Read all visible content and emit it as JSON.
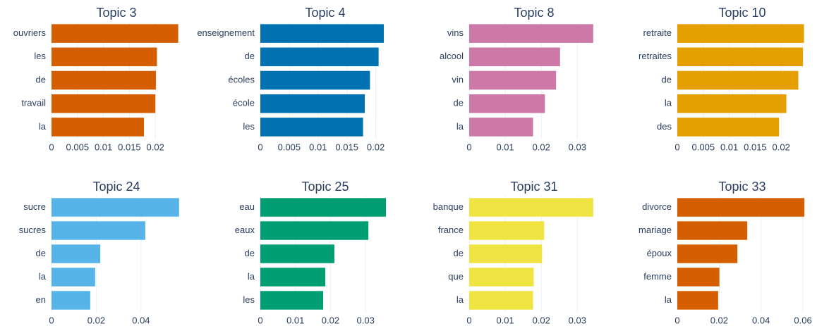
{
  "chart_data": [
    {
      "type": "bar",
      "orientation": "horizontal",
      "title": "Topic 3",
      "categories": [
        "ouvriers",
        "les",
        "de",
        "travail",
        "la"
      ],
      "values": [
        0.0244,
        0.0203,
        0.0201,
        0.02,
        0.0178
      ],
      "color": "#D55E00",
      "xlim": [
        0,
        0.025
      ],
      "xticks": [
        0,
        0.005,
        0.01,
        0.015,
        0.02
      ],
      "grid": true
    },
    {
      "type": "bar",
      "orientation": "horizontal",
      "title": "Topic 4",
      "categories": [
        "enseignement",
        "de",
        "écoles",
        "école",
        "les"
      ],
      "values": [
        0.0214,
        0.0205,
        0.019,
        0.0181,
        0.0178
      ],
      "color": "#0072B2",
      "xlim": [
        0,
        0.0225
      ],
      "xticks": [
        0,
        0.005,
        0.01,
        0.015,
        0.02
      ],
      "grid": true
    },
    {
      "type": "bar",
      "orientation": "horizontal",
      "title": "Topic 8",
      "categories": [
        "vins",
        "alcool",
        "vin",
        "de",
        "la"
      ],
      "values": [
        0.0344,
        0.0252,
        0.0241,
        0.021,
        0.0177
      ],
      "color": "#CC79A7",
      "xlim": [
        0,
        0.036
      ],
      "xticks": [
        0,
        0.01,
        0.02,
        0.03
      ],
      "grid": true
    },
    {
      "type": "bar",
      "orientation": "horizontal",
      "title": "Topic 10",
      "categories": [
        "retraite",
        "retraites",
        "de",
        "la",
        "des"
      ],
      "values": [
        0.0244,
        0.0242,
        0.0233,
        0.021,
        0.0196
      ],
      "color": "#E69F00",
      "xlim": [
        0,
        0.025
      ],
      "xticks": [
        0,
        0.005,
        0.01,
        0.015,
        0.02
      ],
      "grid": true
    },
    {
      "type": "bar",
      "orientation": "horizontal",
      "title": "Topic 24",
      "categories": [
        "sucre",
        "sucres",
        "de",
        "la",
        "en"
      ],
      "values": [
        0.057,
        0.0419,
        0.0218,
        0.0195,
        0.0173
      ],
      "color": "#56B4E9",
      "xlim": [
        0,
        0.058
      ],
      "xticks": [
        0,
        0.02,
        0.04
      ],
      "grid": true
    },
    {
      "type": "bar",
      "orientation": "horizontal",
      "title": "Topic 25",
      "categories": [
        "eau",
        "eaux",
        "de",
        "la",
        "les"
      ],
      "values": [
        0.0358,
        0.0308,
        0.0211,
        0.0185,
        0.0179
      ],
      "color": "#009E73",
      "xlim": [
        0,
        0.037
      ],
      "xticks": [
        0,
        0.01,
        0.02,
        0.03
      ],
      "grid": true
    },
    {
      "type": "bar",
      "orientation": "horizontal",
      "title": "Topic 31",
      "categories": [
        "banque",
        "france",
        "de",
        "que",
        "la"
      ],
      "values": [
        0.0344,
        0.0208,
        0.0202,
        0.0179,
        0.0177
      ],
      "color": "#F0E442",
      "xlim": [
        0,
        0.036
      ],
      "xticks": [
        0,
        0.01,
        0.02,
        0.03
      ],
      "grid": true
    },
    {
      "type": "bar",
      "orientation": "horizontal",
      "title": "Topic 33",
      "categories": [
        "divorce",
        "mariage",
        "époux",
        "femme",
        "la"
      ],
      "values": [
        0.0607,
        0.0334,
        0.0287,
        0.0201,
        0.0195
      ],
      "color": "#D55E00",
      "xlim": [
        0,
        0.062
      ],
      "xticks": [
        0,
        0.02,
        0.04,
        0.06
      ],
      "grid": true
    }
  ]
}
